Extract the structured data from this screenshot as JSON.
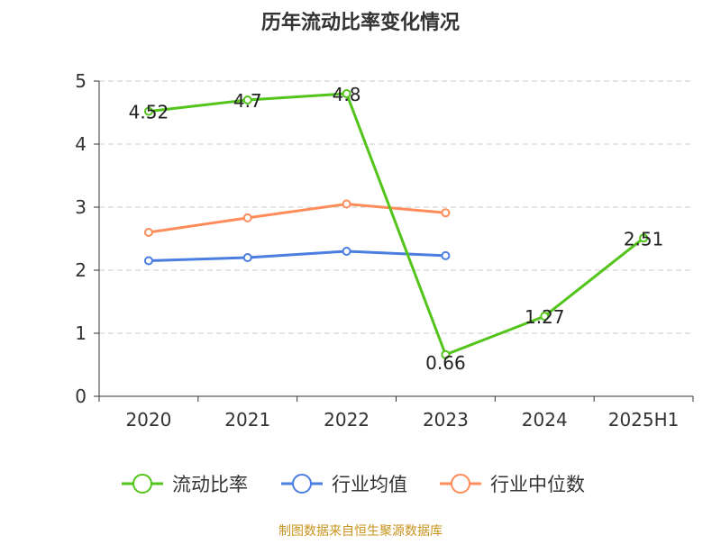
{
  "chart_data": {
    "type": "line",
    "title": "历年流动比率变化情况",
    "categories": [
      "2020",
      "2021",
      "2022",
      "2023",
      "2024",
      "2025H1"
    ],
    "ylim": [
      0,
      5
    ],
    "yticks": [
      0,
      1,
      2,
      3,
      4,
      5
    ],
    "grid": true,
    "legend_position": "bottom",
    "series": [
      {
        "name": "流动比率",
        "color": "#52c41a",
        "values": [
          4.52,
          4.7,
          4.8,
          0.66,
          1.27,
          2.51
        ],
        "labels": [
          "4.52",
          "4.7",
          "4.8",
          "0.66",
          "1.27",
          "2.51"
        ]
      },
      {
        "name": "行业均值",
        "color": "#4a7ee0",
        "values": [
          2.15,
          2.2,
          2.3,
          2.23,
          null,
          null
        ]
      },
      {
        "name": "行业中位数",
        "color": "#ff8c5a",
        "values": [
          2.6,
          2.83,
          3.05,
          2.91,
          null,
          null
        ]
      }
    ]
  },
  "source": "制图数据来自恒生聚源数据库"
}
